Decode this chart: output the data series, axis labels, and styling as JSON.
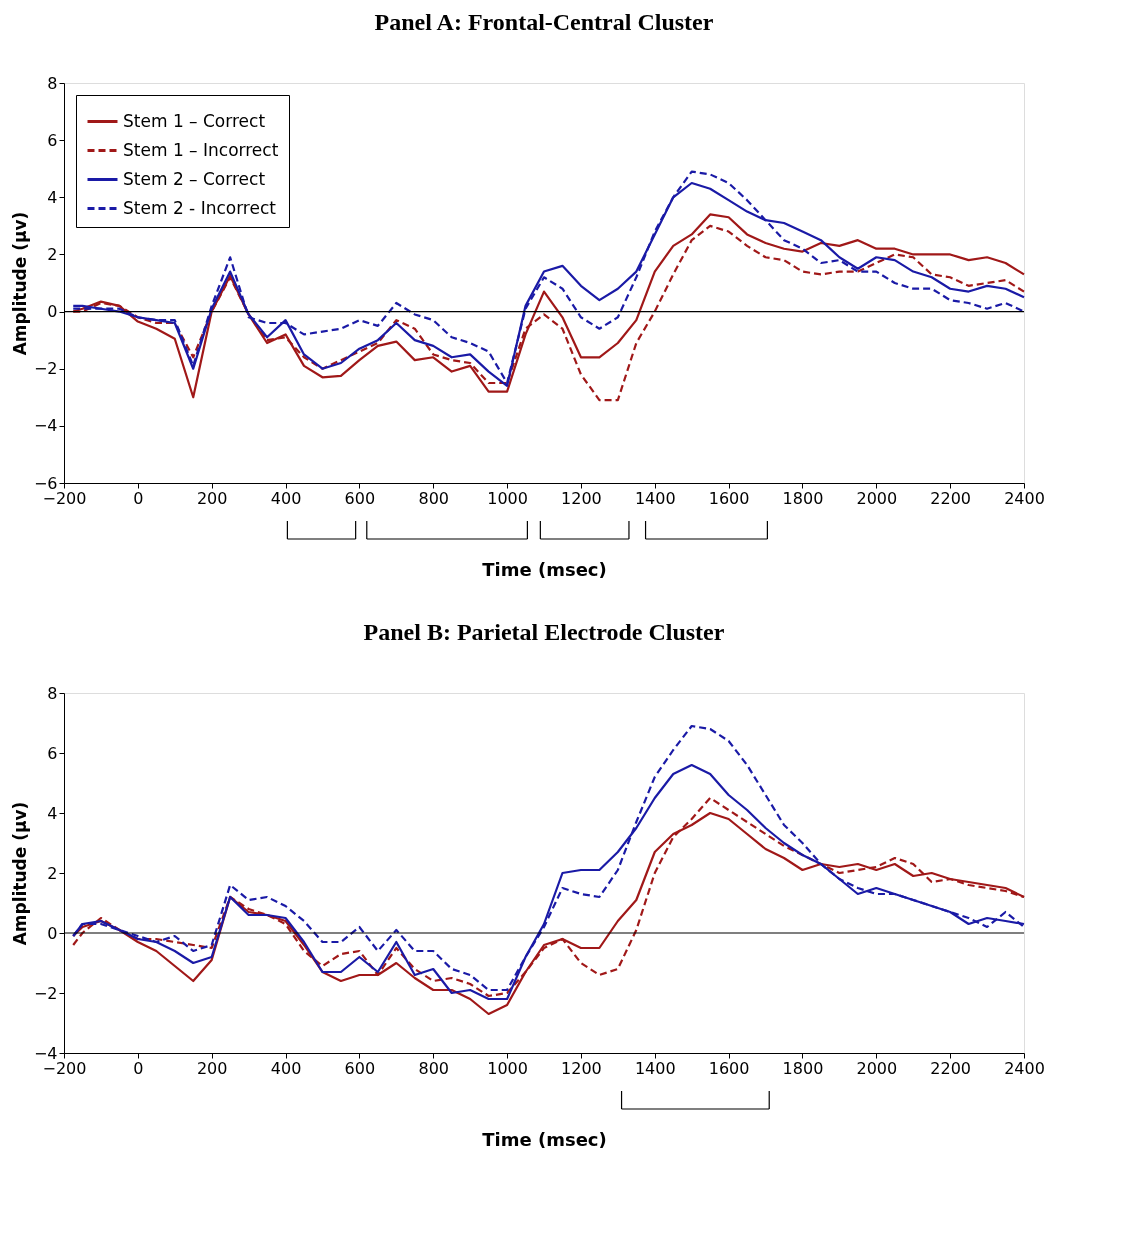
{
  "chart_data": [
    {
      "type": "line",
      "title": "Panel A: Frontal-Central Cluster",
      "xlabel": "Time (msec)",
      "ylabel": "Amplitude (µv)",
      "legend": "top left",
      "grid": false,
      "x": [
        -175,
        -150,
        -100,
        -50,
        0,
        50,
        100,
        150,
        200,
        250,
        300,
        350,
        400,
        450,
        500,
        550,
        600,
        650,
        700,
        750,
        800,
        850,
        900,
        950,
        1000,
        1050,
        1100,
        1150,
        1200,
        1250,
        1300,
        1350,
        1400,
        1450,
        1500,
        1550,
        1600,
        1650,
        1700,
        1750,
        1800,
        1850,
        1900,
        1950,
        2000,
        2050,
        2100,
        2150,
        2200,
        2250,
        2300,
        2350,
        2400
      ],
      "xlim": [
        -200,
        2400
      ],
      "xticks": [
        -200,
        0,
        200,
        400,
        600,
        800,
        1000,
        1200,
        1400,
        1600,
        1800,
        2000,
        2200,
        2400
      ],
      "ylim": [
        -6,
        8
      ],
      "yticks": [
        -6,
        -4,
        -2,
        0,
        2,
        4,
        6,
        8
      ],
      "ref_lines": [
        {
          "axis": "y",
          "value": 0,
          "color": "#000000"
        }
      ],
      "series": [
        {
          "name": "Stem 1 – Correct",
          "color": "#a01818",
          "line_style": "solid",
          "values": [
            0.0,
            0.1,
            0.35,
            0.2,
            -0.35,
            -0.6,
            -0.95,
            -3.0,
            0.0,
            1.25,
            -0.1,
            -1.1,
            -0.8,
            -1.9,
            -2.3,
            -2.25,
            -1.7,
            -1.2,
            -1.05,
            -1.7,
            -1.6,
            -2.1,
            -1.9,
            -2.8,
            -2.8,
            -0.8,
            0.7,
            -0.2,
            -1.6,
            -1.6,
            -1.1,
            -0.3,
            1.4,
            2.3,
            2.7,
            3.4,
            3.3,
            2.7,
            2.4,
            2.2,
            2.1,
            2.4,
            2.3,
            2.5,
            2.2,
            2.2,
            2.0,
            2.0,
            2.0,
            1.8,
            1.9,
            1.7,
            1.3
          ]
        },
        {
          "name": "Stem 1 – Incorrect",
          "color": "#a01818",
          "line_style": "dashed",
          "values": [
            0.0,
            0.0,
            0.3,
            0.2,
            -0.2,
            -0.4,
            -0.4,
            -1.6,
            0.0,
            1.2,
            -0.1,
            -1.0,
            -0.9,
            -1.6,
            -2.0,
            -1.7,
            -1.4,
            -1.1,
            -0.3,
            -0.6,
            -1.5,
            -1.7,
            -1.8,
            -2.5,
            -2.5,
            -0.6,
            -0.1,
            -0.6,
            -2.2,
            -3.1,
            -3.1,
            -1.1,
            0.0,
            1.3,
            2.5,
            3.0,
            2.8,
            2.3,
            1.9,
            1.8,
            1.4,
            1.3,
            1.4,
            1.4,
            1.7,
            2.0,
            1.9,
            1.3,
            1.2,
            0.9,
            1.0,
            1.1,
            0.7
          ]
        },
        {
          "name": "Stem 2 – Correct",
          "color": "#1a1aa6",
          "line_style": "solid",
          "values": [
            0.2,
            0.2,
            0.1,
            0.0,
            -0.2,
            -0.3,
            -0.4,
            -2.0,
            0.1,
            1.4,
            -0.1,
            -0.9,
            -0.3,
            -1.5,
            -2.0,
            -1.8,
            -1.3,
            -1.0,
            -0.4,
            -1.0,
            -1.2,
            -1.6,
            -1.5,
            -2.1,
            -2.6,
            0.2,
            1.4,
            1.6,
            0.9,
            0.4,
            0.8,
            1.4,
            2.7,
            4.0,
            4.5,
            4.3,
            3.9,
            3.5,
            3.2,
            3.1,
            2.8,
            2.5,
            1.9,
            1.5,
            1.9,
            1.8,
            1.4,
            1.2,
            0.8,
            0.7,
            0.9,
            0.8,
            0.5
          ]
        },
        {
          "name": "Stem 2 - Incorrect",
          "color": "#1a1aa6",
          "line_style": "dashed",
          "values": [
            0.1,
            0.1,
            0.1,
            0.1,
            -0.2,
            -0.3,
            -0.3,
            -1.9,
            0.2,
            1.9,
            -0.2,
            -0.4,
            -0.4,
            -0.8,
            -0.7,
            -0.6,
            -0.3,
            -0.5,
            0.3,
            -0.1,
            -0.3,
            -0.9,
            -1.1,
            -1.4,
            -2.5,
            0.1,
            1.2,
            0.8,
            -0.2,
            -0.6,
            -0.2,
            1.2,
            2.8,
            4.0,
            4.9,
            4.8,
            4.5,
            3.9,
            3.2,
            2.5,
            2.2,
            1.7,
            1.8,
            1.4,
            1.4,
            1.0,
            0.8,
            0.8,
            0.4,
            0.3,
            0.1,
            0.3,
            0.0
          ]
        }
      ]
    },
    {
      "type": "line",
      "title": "Panel B: Parietal Electrode Cluster",
      "xlabel": "Time (msec)",
      "ylabel": "Amplitude (µv)",
      "legend": "top left",
      "grid": false,
      "x": [
        -175,
        -150,
        -100,
        -50,
        0,
        50,
        100,
        150,
        200,
        250,
        300,
        350,
        400,
        450,
        500,
        550,
        600,
        650,
        700,
        750,
        800,
        850,
        900,
        950,
        1000,
        1050,
        1100,
        1150,
        1200,
        1250,
        1300,
        1350,
        1400,
        1450,
        1500,
        1550,
        1600,
        1650,
        1700,
        1750,
        1800,
        1850,
        1900,
        1950,
        2000,
        2050,
        2100,
        2150,
        2200,
        2250,
        2300,
        2350,
        2400
      ],
      "xlim": [
        -200,
        2400
      ],
      "xticks": [
        -200,
        0,
        200,
        400,
        600,
        800,
        1000,
        1200,
        1400,
        1600,
        1800,
        2000,
        2200,
        2400
      ],
      "ylim": [
        -4,
        8
      ],
      "yticks": [
        -4,
        -2,
        0,
        2,
        4,
        6,
        8
      ],
      "ref_lines": [
        {
          "axis": "y",
          "value": 0,
          "color": "#000000"
        }
      ],
      "series": [
        {
          "name": "Stem 1 – Correct",
          "color": "#a01818",
          "line_style": "solid",
          "values": [
            -0.1,
            0.2,
            0.4,
            0.1,
            -0.3,
            -0.6,
            -1.1,
            -1.6,
            -0.9,
            1.2,
            0.7,
            0.6,
            0.4,
            -0.4,
            -1.3,
            -1.6,
            -1.4,
            -1.4,
            -1.0,
            -1.5,
            -1.9,
            -1.9,
            -2.2,
            -2.7,
            -2.4,
            -1.3,
            -0.4,
            -0.2,
            -0.5,
            -0.5,
            0.4,
            1.1,
            2.7,
            3.3,
            3.6,
            4.0,
            3.8,
            3.3,
            2.8,
            2.5,
            2.1,
            2.3,
            2.2,
            2.3,
            2.1,
            2.3,
            1.9,
            2.0,
            1.8,
            1.7,
            1.6,
            1.5,
            1.2
          ]
        },
        {
          "name": "Stem 1 – Incorrect",
          "color": "#a01818",
          "line_style": "dashed",
          "values": [
            -0.4,
            0.0,
            0.5,
            0.1,
            -0.2,
            -0.2,
            -0.3,
            -0.4,
            -0.5,
            1.2,
            0.8,
            0.6,
            0.3,
            -0.6,
            -1.1,
            -0.7,
            -0.6,
            -1.4,
            -0.5,
            -1.2,
            -1.6,
            -1.5,
            -1.7,
            -2.1,
            -2.0,
            -1.3,
            -0.5,
            -0.2,
            -1.0,
            -1.4,
            -1.2,
            0.1,
            2.0,
            3.2,
            3.8,
            4.5,
            4.1,
            3.7,
            3.3,
            2.9,
            2.6,
            2.3,
            2.0,
            2.1,
            2.2,
            2.5,
            2.3,
            1.7,
            1.8,
            1.6,
            1.5,
            1.4,
            1.2
          ]
        },
        {
          "name": "Stem 2 – Correct",
          "color": "#1a1aa6",
          "line_style": "solid",
          "values": [
            -0.1,
            0.3,
            0.4,
            0.1,
            -0.2,
            -0.3,
            -0.6,
            -1.0,
            -0.8,
            1.2,
            0.6,
            0.6,
            0.5,
            -0.3,
            -1.3,
            -1.3,
            -0.8,
            -1.3,
            -0.3,
            -1.4,
            -1.2,
            -2.0,
            -1.9,
            -2.2,
            -2.2,
            -0.8,
            0.3,
            2.0,
            2.1,
            2.1,
            2.7,
            3.5,
            4.5,
            5.3,
            5.6,
            5.3,
            4.6,
            4.1,
            3.5,
            3.0,
            2.6,
            2.3,
            1.8,
            1.3,
            1.5,
            1.3,
            1.1,
            0.9,
            0.7,
            0.3,
            0.5,
            0.4,
            0.3
          ]
        },
        {
          "name": "Stem 2 - Incorrect",
          "color": "#1a1aa6",
          "line_style": "dashed",
          "values": [
            -0.1,
            0.3,
            0.3,
            0.1,
            -0.1,
            -0.3,
            -0.1,
            -0.6,
            -0.4,
            1.6,
            1.1,
            1.2,
            0.9,
            0.4,
            -0.3,
            -0.3,
            0.2,
            -0.6,
            0.1,
            -0.6,
            -0.6,
            -1.2,
            -1.4,
            -1.9,
            -1.9,
            -0.8,
            0.2,
            1.5,
            1.3,
            1.2,
            2.1,
            3.7,
            5.2,
            6.1,
            6.9,
            6.8,
            6.4,
            5.6,
            4.6,
            3.6,
            3.0,
            2.3,
            1.8,
            1.5,
            1.3,
            1.3,
            1.1,
            0.9,
            0.7,
            0.5,
            0.2,
            0.7,
            0.2
          ]
        }
      ]
    }
  ]
}
